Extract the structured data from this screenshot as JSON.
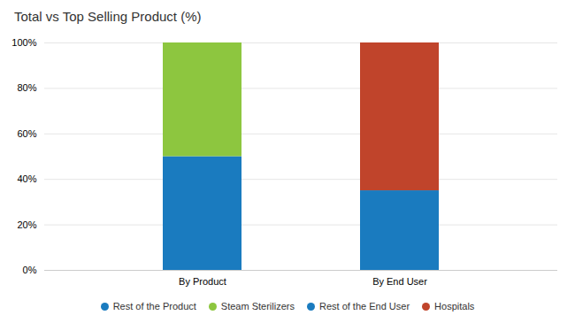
{
  "chart_data": {
    "type": "bar",
    "stacked": true,
    "title": "Total vs Top Selling Product (%)",
    "categories": [
      "By Product",
      "By End User"
    ],
    "series": [
      {
        "name": "Rest of the Product",
        "color": "#1a7bbf",
        "values": [
          50,
          null
        ]
      },
      {
        "name": "Steam Sterilizers",
        "color": "#8dc63f",
        "values": [
          50,
          0
        ]
      },
      {
        "name": "Rest of the End User",
        "color": "#1a7bbf",
        "values": [
          null,
          35
        ]
      },
      {
        "name": "Hospitals",
        "color": "#c0442b",
        "values": [
          0,
          65
        ]
      }
    ],
    "ylim": [
      0,
      100
    ],
    "yticks": [
      {
        "value": 0,
        "label": "0%"
      },
      {
        "value": 20,
        "label": "20%"
      },
      {
        "value": 40,
        "label": "40%"
      },
      {
        "value": 60,
        "label": "60%"
      },
      {
        "value": 80,
        "label": "80%"
      },
      {
        "value": 100,
        "label": "100%"
      }
    ],
    "grid": true,
    "legend": "bottom"
  }
}
